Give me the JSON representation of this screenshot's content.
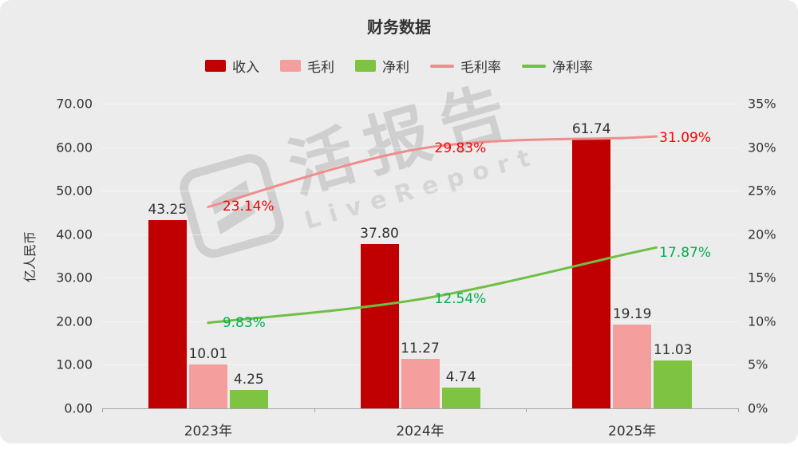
{
  "title": "财务数据",
  "y_axis_title": "亿人民币",
  "watermark": {
    "name": "活报告",
    "subtitle": "LiveReport"
  },
  "chart_data": {
    "type": "bar",
    "categories": [
      "2023年",
      "2024年",
      "2025年"
    ],
    "series": [
      {
        "name": "收入",
        "slug": "revenue",
        "kind": "bar",
        "axis": "left",
        "color": "#c00000",
        "values": [
          "43.25",
          "37.80",
          "61.74"
        ]
      },
      {
        "name": "毛利",
        "slug": "gross-profit",
        "kind": "bar",
        "axis": "left",
        "color": "#f59e9e",
        "values": [
          "10.01",
          "11.27",
          "19.19"
        ]
      },
      {
        "name": "净利",
        "slug": "net-profit",
        "kind": "bar",
        "axis": "left",
        "color": "#7fc342",
        "values": [
          "4.25",
          "4.74",
          "11.03"
        ]
      },
      {
        "name": "毛利率",
        "slug": "gross-margin",
        "kind": "line",
        "axis": "right",
        "color": "#f08d8d",
        "label_color": "#ff0000",
        "values": [
          "23.14%",
          "29.83%",
          "31.09%"
        ]
      },
      {
        "name": "净利率",
        "slug": "net-margin",
        "kind": "line",
        "axis": "right",
        "color": "#6fbf45",
        "label_color": "#00b050",
        "values": [
          "9.83%",
          "12.54%",
          "17.87%"
        ]
      }
    ],
    "left_axis": {
      "min": 0,
      "max": 70,
      "tick_labels": [
        "70.00",
        "60.00",
        "50.00",
        "40.00",
        "30.00",
        "20.00",
        "10.00",
        "0.00"
      ]
    },
    "right_axis": {
      "min": 0,
      "max": 35,
      "tick_labels": [
        "35%",
        "30%",
        "25%",
        "20%",
        "15%",
        "10%",
        "5%",
        "0%"
      ]
    },
    "legend_position": "top",
    "grid": false
  }
}
